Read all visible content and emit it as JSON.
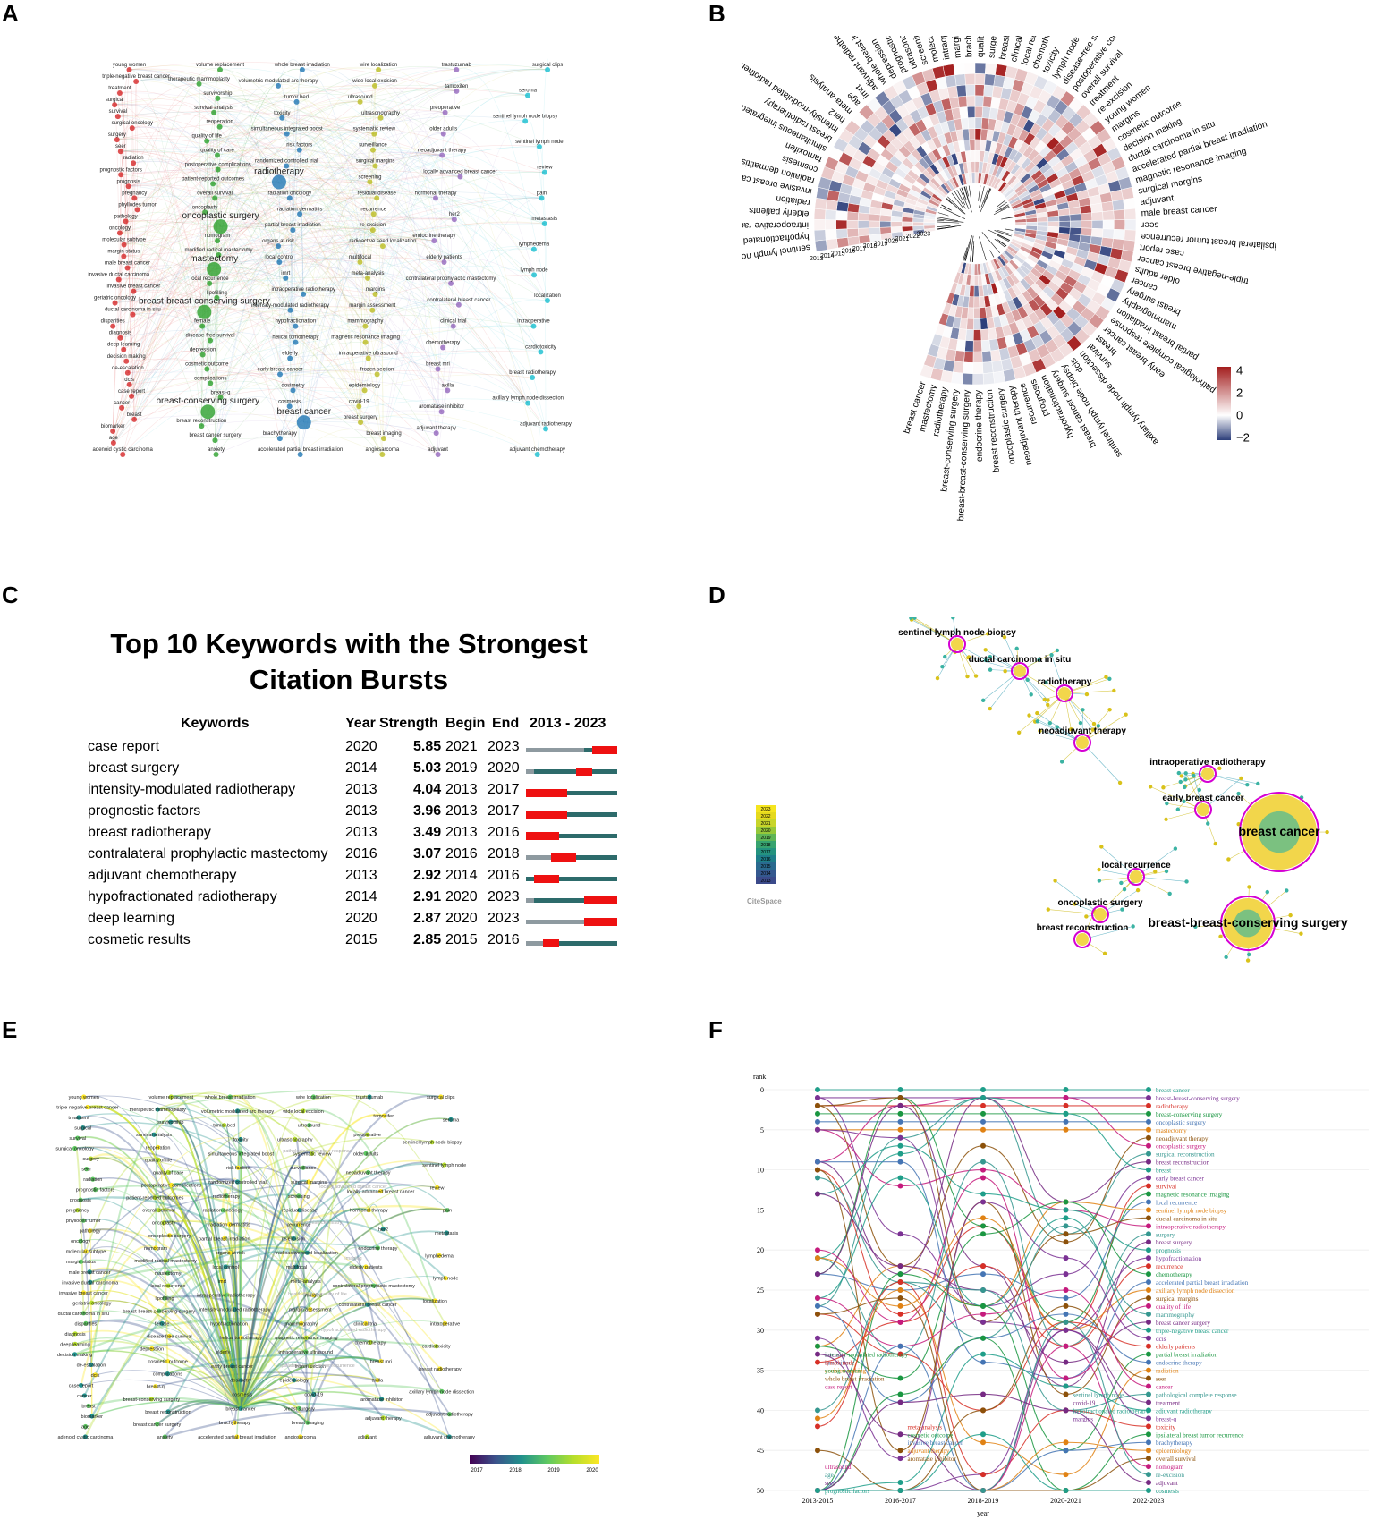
{
  "panels": {
    "a": "A",
    "b": "B",
    "c": "C",
    "d": "D",
    "e": "E",
    "f": "F"
  },
  "panel_a": {
    "clusters": [
      {
        "color": "#d62728",
        "labels": [
          "young women",
          "triple-negative breast cancer",
          "treatment",
          "surgical",
          "survival",
          "surgical oncology",
          "surgery",
          "seer",
          "radiation",
          "prognostic factors",
          "prognosis",
          "pregnancy",
          "phyllodes tumor",
          "pathology",
          "oncology",
          "molecular subtype",
          "margin status",
          "male breast cancer",
          "invasive ductal carcinoma",
          "invasive breast cancer",
          "geriatric oncology",
          "ductal carcinoma in situ",
          "disparities",
          "diagnosis",
          "deep learning",
          "decision making",
          "de-escalation",
          "dcis",
          "case report",
          "cancer",
          "breast",
          "biomarker",
          "age",
          "adenoid cystic carcinoma"
        ]
      },
      {
        "color": "#2ca02c",
        "labels": [
          "volume replacement",
          "therapeutic mammoplasty",
          "survivorship",
          "survival analysis",
          "reoperation",
          "quality of life",
          "quality of care",
          "postoperative complications",
          "patient-reported outcomes",
          "overall survival",
          "oncoplasty",
          "oncoplastic surgery",
          "nomogram",
          "modified radical mastectomy",
          "mastectomy",
          "local recurrence",
          "lipofilling",
          "breast-breast-conserving surgery",
          "female",
          "disease-free survival",
          "depression",
          "cosmetic outcome",
          "complications",
          "breast-q",
          "breast-conserving surgery",
          "breast reconstruction",
          "breast cancer surgery",
          "anxiety"
        ]
      },
      {
        "color": "#1f77b4",
        "labels": [
          "whole breast irradiation",
          "volumetric modulated arc therapy",
          "tumor bed",
          "toxicity",
          "simultaneous integrated boost",
          "risk factors",
          "randomized controlled trial",
          "radiotherapy",
          "radiation oncology",
          "radiation dermatitis",
          "partial breast irradiation",
          "organs at risk",
          "local control",
          "imrt",
          "intraoperative radiotherapy",
          "intensity-modulated radiotherapy",
          "hypofractionation",
          "helical tomotherapy",
          "elderly",
          "early breast cancer",
          "dosimetry",
          "cosmesis",
          "breast cancer",
          "brachytherapy",
          "accelerated partial breast irradiation"
        ]
      },
      {
        "color": "#bcbd22",
        "labels": [
          "wire localization",
          "wide local excision",
          "ultrasound",
          "ultrasonography",
          "systematic review",
          "surveillance",
          "surgical margins",
          "screening",
          "residual disease",
          "recurrence",
          "re-excision",
          "radioactive seed localization",
          "multifocal",
          "meta-analysis",
          "margins",
          "margin assessment",
          "mammography",
          "magnetic resonance imaging",
          "intraoperative ultrasound",
          "frozen section",
          "epidemiology",
          "covid-19",
          "breast surgery",
          "breast imaging",
          "angiosarcoma"
        ]
      },
      {
        "color": "#9467bd",
        "labels": [
          "trastuzumab",
          "tamoxifen",
          "preoperative",
          "older adults",
          "neoadjuvant therapy",
          "locally advanced breast cancer",
          "hormonal therapy",
          "her2",
          "endocrine therapy",
          "elderly patients",
          "contralateral prophylactic mastectomy",
          "contralateral breast cancer",
          "clinical trial",
          "chemotherapy",
          "breast mri",
          "axilla",
          "aromatase inhibitor",
          "adjuvant therapy",
          "adjuvant"
        ]
      },
      {
        "color": "#17becf",
        "labels": [
          "surgical clips",
          "seroma",
          "sentinel lymph node biopsy",
          "sentinel lymph node",
          "review",
          "pain",
          "metastasis",
          "lymphedema",
          "lymph node",
          "localization",
          "intraoperative",
          "cardiotoxicity",
          "breast radiotherapy",
          "axillary lymph node dissection",
          "adjuvant radiotherapy",
          "adjuvant chemotherapy"
        ]
      }
    ]
  },
  "panel_b": {
    "years": [
      "2023",
      "2022",
      "2021",
      "2020",
      "2019",
      "2018",
      "2017",
      "2016",
      "2015",
      "2014",
      "2013"
    ],
    "keywords": [
      "sentinel lymph node",
      "hypofractionated radiotherapy",
      "intraoperative radiotherapy",
      "elderly patients",
      "radiation",
      "invasive breast cancer",
      "radiation dermatitis",
      "cosmesis",
      "tamoxifen",
      "simultaneous integrated boost",
      "breast radiotherapy",
      "intensity-modulated radiotherapy",
      "her2",
      "meta-analysis",
      "age",
      "imrt",
      "adjuvant radiotherapy",
      "whole breast irradiation",
      "depression",
      "prognostic factors",
      "ultrasonography",
      "screening",
      "molecular subtype",
      "intraoperative",
      "margin status",
      "brachytherapy",
      "quality of life",
      "surgery",
      "breast-q",
      "clinical trial",
      "local recurrence",
      "chemotherapy",
      "toxicity",
      "lymph node",
      "disease-free survival",
      "postoperative complications",
      "overall survival",
      "treatment",
      "re-excision",
      "young women",
      "margins",
      "cosmetic outcome",
      "decision making",
      "ductal carcinoma in situ",
      "accelerated partial breast irradiation",
      "magnetic resonance imaging",
      "surgical margins",
      "adjuvant",
      "male breast cancer",
      "seer",
      "ipsilateral breast tumor recurrence",
      "case report",
      "triple-negative breast cancer",
      "older adults",
      "cancer",
      "breast surgery",
      "mammography",
      "partial breast irradiation",
      "pathological complete response",
      "early breast cancer",
      "breast",
      "survival",
      "axillary lymph node dissection",
      "dcis",
      "sentinel lymph node biopsy",
      "breast cancer surgery",
      "hypofractionation",
      "prognosis",
      "recurrence",
      "neoadjuvant therapy",
      "oncoplastic surgery",
      "breast reconstruction",
      "endocrine therapy",
      "breast-breast-conserving surgery",
      "breast-conserving surgery",
      "radiotherapy",
      "mastectomy",
      "breast cancer"
    ],
    "legend_ticks": [
      "4",
      "2",
      "0",
      "−2"
    ],
    "color_min": "#2c3e7a",
    "color_mid": "#ffffff",
    "color_max": "#a31d1d"
  },
  "panel_c": {
    "title_line1": "Top 10 Keywords with the Strongest",
    "title_line2": "Citation Bursts",
    "headers": {
      "keywords": "Keywords",
      "year": "Year",
      "strength": "Strength",
      "begin": "Begin",
      "end": "End",
      "range": "2013 - 2023"
    },
    "rows": [
      {
        "keyword": "case report",
        "year": "2020",
        "strength": "5.85",
        "begin": "2021",
        "end": "2023"
      },
      {
        "keyword": "breast surgery",
        "year": "2014",
        "strength": "5.03",
        "begin": "2019",
        "end": "2020"
      },
      {
        "keyword": "intensity-modulated radiotherapy",
        "year": "2013",
        "strength": "4.04",
        "begin": "2013",
        "end": "2017"
      },
      {
        "keyword": "prognostic factors",
        "year": "2013",
        "strength": "3.96",
        "begin": "2013",
        "end": "2017"
      },
      {
        "keyword": "breast radiotherapy",
        "year": "2013",
        "strength": "3.49",
        "begin": "2013",
        "end": "2016"
      },
      {
        "keyword": "contralateral prophylactic mastectomy",
        "year": "2016",
        "strength": "3.07",
        "begin": "2016",
        "end": "2018"
      },
      {
        "keyword": "adjuvant chemotherapy",
        "year": "2013",
        "strength": "2.92",
        "begin": "2014",
        "end": "2016"
      },
      {
        "keyword": "hypofractionated radiotherapy",
        "year": "2014",
        "strength": "2.91",
        "begin": "2020",
        "end": "2023"
      },
      {
        "keyword": "deep learning",
        "year": "2020",
        "strength": "2.87",
        "begin": "2020",
        "end": "2023"
      },
      {
        "keyword": "cosmetic results",
        "year": "2015",
        "strength": "2.85",
        "begin": "2015",
        "end": "2016"
      }
    ]
  },
  "panel_d": {
    "labels": [
      "sentinel lymph node biopsy",
      "ductal carcinoma in situ",
      "radiotherapy",
      "neoadjuvant therapy",
      "intraoperative radiotherapy",
      "early breast cancer",
      "breast cancer",
      "local recurrence",
      "oncoplastic surgery",
      "breast-breast-conserving surgery",
      "breast reconstruction"
    ],
    "legend_years": [
      "2023",
      "2022",
      "2021",
      "2020",
      "2019",
      "2018",
      "2017",
      "2016",
      "2015",
      "2014",
      "2013"
    ],
    "logo": "CiteSpace"
  },
  "panel_e": {
    "colorbar_ticks": [
      "2017",
      "2018",
      "2019",
      "2020"
    ],
    "extra_labels": [
      "pathological complete response",
      "locally advanced breast cancer",
      "immunohistochemistry",
      "imaging",
      "health-related quality of life",
      "hypofractionated radiotherapy",
      "ipsilateral breast tumor recurrence"
    ]
  },
  "chart_data": {
    "type": "line",
    "title": "",
    "xlabel": "year",
    "ylabel": "rank",
    "x": [
      "2013-2015",
      "2016-2017",
      "2018-2019",
      "2020-2021",
      "2022-2023"
    ],
    "yticks": [
      "0",
      "5",
      "10",
      "15",
      "20",
      "25",
      "30",
      "35",
      "40",
      "45",
      "50"
    ],
    "ylim": [
      0,
      50
    ],
    "final_rank_labels": [
      "breast cancer",
      "breast-breast-conserving surgery",
      "radiotherapy",
      "breast-conserving surgery",
      "oncoplastic surgery",
      "mastectomy",
      "neoadjuvant therapy",
      "oncoplastic surgery",
      "surgical reconstruction",
      "breast reconstruction",
      "breast",
      "early breast cancer",
      "survival",
      "magnetic resonance imaging",
      "local recurrence",
      "sentinel lymph node biopsy",
      "ductal carcinoma in situ",
      "intraoperative radiotherapy",
      "surgery",
      "breast surgery",
      "prognosis",
      "hypofractionation",
      "recurrence",
      "chemotherapy",
      "accelerated partial breast irradiation",
      "axillary lymph node dissection",
      "surgical margins",
      "quality of life",
      "mammography",
      "breast cancer surgery",
      "triple-negative breast cancer",
      "dcis",
      "elderly patients",
      "partial breast irradiation",
      "endocrine therapy",
      "radiation",
      "seer",
      "cancer",
      "pathological complete response",
      "treatment",
      "adjuvant radiotherapy",
      "breast-q",
      "toxicity",
      "ipsilateral breast tumor recurrence",
      "brachytherapy",
      "epidemiology",
      "overall survival",
      "nomogram",
      "re-excision",
      "adjuvant",
      "cosmesis"
    ],
    "inline_labels": [
      "intensity-modulated radiotherapy",
      "tamoxifen",
      "decision making",
      "whole breast irradiation",
      "case report",
      "sentinel lymph node",
      "covid-19",
      "hypofractionated radiotherapy",
      "margins",
      "meta-analysis",
      "cosmetic outcome",
      "invasive breast cancer",
      "adjuvant therapy",
      "aromatase inhibitor",
      "ultrasound",
      "age",
      "seer",
      "prognostic factors",
      "sarcoma",
      "lymph node",
      "young women"
    ]
  }
}
